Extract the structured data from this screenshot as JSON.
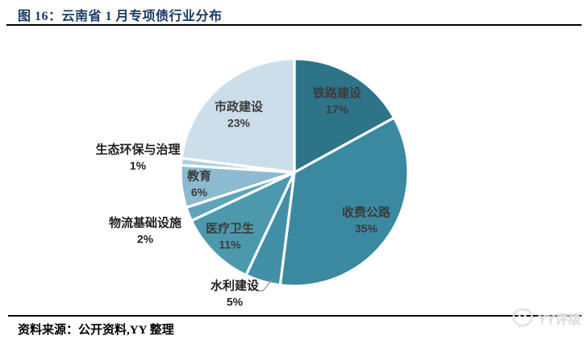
{
  "figure": {
    "title": "图 16：云南省 1 月专项债行业分布",
    "source": "资料来源：公开资料,YY 整理",
    "watermark": "YY评级"
  },
  "chart_data": {
    "type": "pie",
    "title": "云南省 1 月专项债行业分布",
    "values_unit": "%",
    "legend": "none",
    "start_angle_deg": 0,
    "direction": "clockwise",
    "gap_color": "#ffffff",
    "slices": [
      {
        "label": "铁路建设",
        "value": 17,
        "pct_label": "17%",
        "color": "#2E7489",
        "label_placement": "inside",
        "label_angle_deg": 31,
        "label_r_factor": 0.73,
        "leader": false
      },
      {
        "label": "收费公路",
        "value": 35,
        "pct_label": "35%",
        "color": "#3A89A0",
        "label_placement": "inside",
        "label_angle_deg": 124.2,
        "label_r_factor": 0.76,
        "leader": false
      },
      {
        "label": "水利建设",
        "value": 5,
        "pct_label": "5%",
        "color": "#4290A7",
        "label_placement": "outside",
        "label_angle_deg": 206,
        "label_r_factor": 1.19,
        "leader": true
      },
      {
        "label": "医疗卫生",
        "value": 11,
        "pct_label": "11%",
        "color": "#4C99AE",
        "label_placement": "inside",
        "label_angle_deg": 225,
        "label_r_factor": 0.8,
        "leader": false
      },
      {
        "label": "物流基础设施",
        "value": 2,
        "pct_label": "2%",
        "color": "#5FA3B9",
        "label_placement": "outside",
        "label_angle_deg": 248.4,
        "label_r_factor": 1.41,
        "leader": false
      },
      {
        "label": "教育",
        "value": 6,
        "pct_label": "6%",
        "color": "#8CBAD1",
        "label_placement": "inside",
        "label_angle_deg": 262.8,
        "label_r_factor": 0.84,
        "leader": false
      },
      {
        "label": "生态环保与治理",
        "value": 1,
        "pct_label": "1%",
        "color": "#AECEDF",
        "label_placement": "outside",
        "label_angle_deg": 275.4,
        "label_r_factor": 1.38,
        "leader": false
      },
      {
        "label": "市政建设",
        "value": 23,
        "pct_label": "23%",
        "color": "#CCDEE9",
        "label_placement": "inside",
        "label_angle_deg": 316,
        "label_r_factor": 0.7,
        "leader": false
      }
    ]
  }
}
